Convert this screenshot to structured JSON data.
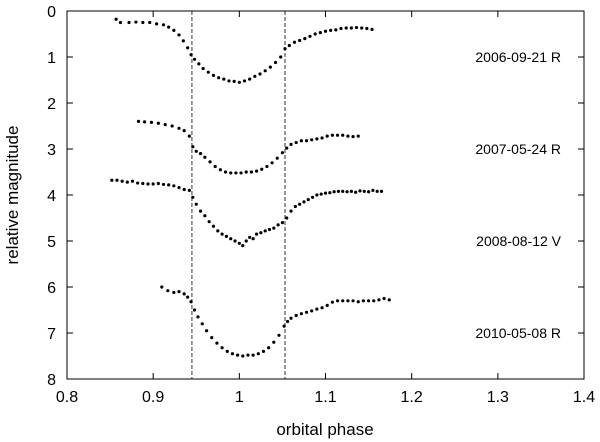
{
  "chart_data": {
    "type": "scatter",
    "xlabel": "orbital phase",
    "ylabel": "relative magnitude",
    "xlim": [
      0.8,
      1.4
    ],
    "ylim": [
      8,
      0
    ],
    "y_inverted": true,
    "grid": false,
    "xticks": [
      "0.8",
      "0.9",
      "1",
      "1.1",
      "1.2",
      "1.3",
      "1.4"
    ],
    "yticks": [
      "0",
      "1",
      "2",
      "3",
      "4",
      "5",
      "6",
      "7",
      "8"
    ],
    "vlines": [
      0.945,
      1.053
    ],
    "marker_color": "#000000",
    "series": [
      {
        "name": "2006-09-21  R",
        "label_y": 1.0,
        "x": [
          0.857,
          0.862,
          0.872,
          0.88,
          0.888,
          0.896,
          0.904,
          0.912,
          0.918,
          0.924,
          0.93,
          0.935,
          0.94,
          0.944,
          0.948,
          0.953,
          0.958,
          0.964,
          0.97,
          0.976,
          0.982,
          0.988,
          0.994,
          1.0,
          1.006,
          1.012,
          1.018,
          1.024,
          1.03,
          1.036,
          1.042,
          1.048,
          1.053,
          1.058,
          1.064,
          1.07,
          1.076,
          1.082,
          1.088,
          1.094,
          1.1,
          1.106,
          1.112,
          1.118,
          1.124,
          1.13,
          1.136,
          1.142,
          1.148,
          1.154
        ],
        "y": [
          0.18,
          0.25,
          0.25,
          0.24,
          0.25,
          0.25,
          0.28,
          0.3,
          0.35,
          0.42,
          0.52,
          0.65,
          0.8,
          0.95,
          1.05,
          1.15,
          1.25,
          1.33,
          1.4,
          1.45,
          1.48,
          1.52,
          1.53,
          1.55,
          1.52,
          1.48,
          1.42,
          1.37,
          1.3,
          1.22,
          1.12,
          1.0,
          0.82,
          0.75,
          0.68,
          0.64,
          0.6,
          0.55,
          0.5,
          0.47,
          0.44,
          0.42,
          0.41,
          0.38,
          0.37,
          0.37,
          0.36,
          0.37,
          0.38,
          0.4
        ]
      },
      {
        "name": "2007-05-24  R",
        "label_y": 3.0,
        "x": [
          0.883,
          0.89,
          0.898,
          0.906,
          0.914,
          0.922,
          0.93,
          0.936,
          0.942,
          0.946,
          0.95,
          0.955,
          0.96,
          0.966,
          0.972,
          0.978,
          0.984,
          0.99,
          0.996,
          1.002,
          1.008,
          1.014,
          1.02,
          1.026,
          1.032,
          1.038,
          1.044,
          1.05,
          1.055,
          1.06,
          1.066,
          1.072,
          1.078,
          1.084,
          1.09,
          1.096,
          1.102,
          1.108,
          1.114,
          1.12,
          1.126,
          1.132,
          1.138
        ],
        "y": [
          2.4,
          2.41,
          2.42,
          2.44,
          2.47,
          2.5,
          2.55,
          2.6,
          2.72,
          2.95,
          3.05,
          3.1,
          3.18,
          3.28,
          3.38,
          3.45,
          3.5,
          3.52,
          3.52,
          3.52,
          3.5,
          3.5,
          3.48,
          3.44,
          3.38,
          3.3,
          3.2,
          3.08,
          2.98,
          2.9,
          2.86,
          2.82,
          2.82,
          2.8,
          2.78,
          2.76,
          2.72,
          2.7,
          2.7,
          2.7,
          2.72,
          2.73,
          2.72
        ]
      },
      {
        "name": "2008-08-12  V",
        "label_y": 5.0,
        "x": [
          0.852,
          0.858,
          0.864,
          0.87,
          0.876,
          0.882,
          0.888,
          0.894,
          0.9,
          0.906,
          0.912,
          0.918,
          0.924,
          0.93,
          0.936,
          0.942,
          0.946,
          0.95,
          0.955,
          0.96,
          0.965,
          0.97,
          0.975,
          0.98,
          0.985,
          0.99,
          0.995,
          1.0,
          1.004,
          1.008,
          1.012,
          1.016,
          1.02,
          1.025,
          1.03,
          1.035,
          1.04,
          1.045,
          1.05,
          1.055,
          1.06,
          1.065,
          1.07,
          1.075,
          1.08,
          1.085,
          1.09,
          1.095,
          1.1,
          1.105,
          1.11,
          1.115,
          1.12,
          1.125,
          1.13,
          1.135,
          1.14,
          1.145,
          1.15,
          1.155,
          1.16,
          1.165
        ],
        "y": [
          3.68,
          3.68,
          3.7,
          3.72,
          3.7,
          3.74,
          3.75,
          3.76,
          3.76,
          3.75,
          3.77,
          3.78,
          3.8,
          3.84,
          3.88,
          3.9,
          4.05,
          4.2,
          4.35,
          4.45,
          4.58,
          4.68,
          4.78,
          4.85,
          4.9,
          4.95,
          5.0,
          5.05,
          5.1,
          5.0,
          4.92,
          4.95,
          4.85,
          4.82,
          4.78,
          4.75,
          4.72,
          4.65,
          4.6,
          4.5,
          4.35,
          4.25,
          4.2,
          4.15,
          4.1,
          4.05,
          4.0,
          3.98,
          3.96,
          3.95,
          3.93,
          3.92,
          3.92,
          3.93,
          3.92,
          3.94,
          3.91,
          3.92,
          3.93,
          3.9,
          3.92,
          3.92
        ]
      },
      {
        "name": "2010-05-08  R",
        "label_y": 7.0,
        "x": [
          0.91,
          0.917,
          0.924,
          0.93,
          0.936,
          0.94,
          0.944,
          0.948,
          0.952,
          0.957,
          0.962,
          0.968,
          0.974,
          0.98,
          0.986,
          0.992,
          0.998,
          1.004,
          1.01,
          1.016,
          1.022,
          1.028,
          1.034,
          1.04,
          1.046,
          1.052,
          1.056,
          1.06,
          1.066,
          1.072,
          1.078,
          1.084,
          1.09,
          1.096,
          1.102,
          1.108,
          1.114,
          1.12,
          1.126,
          1.132,
          1.138,
          1.144,
          1.15,
          1.156,
          1.162,
          1.168,
          1.174
        ],
        "y": [
          6.0,
          6.08,
          6.12,
          6.1,
          6.15,
          6.22,
          6.32,
          6.5,
          6.65,
          6.8,
          6.95,
          7.1,
          7.22,
          7.32,
          7.4,
          7.45,
          7.48,
          7.5,
          7.48,
          7.48,
          7.45,
          7.4,
          7.32,
          7.2,
          7.05,
          6.85,
          6.75,
          6.68,
          6.62,
          6.58,
          6.55,
          6.52,
          6.48,
          6.45,
          6.4,
          6.33,
          6.3,
          6.3,
          6.3,
          6.3,
          6.32,
          6.3,
          6.3,
          6.3,
          6.28,
          6.25,
          6.28
        ]
      }
    ]
  }
}
